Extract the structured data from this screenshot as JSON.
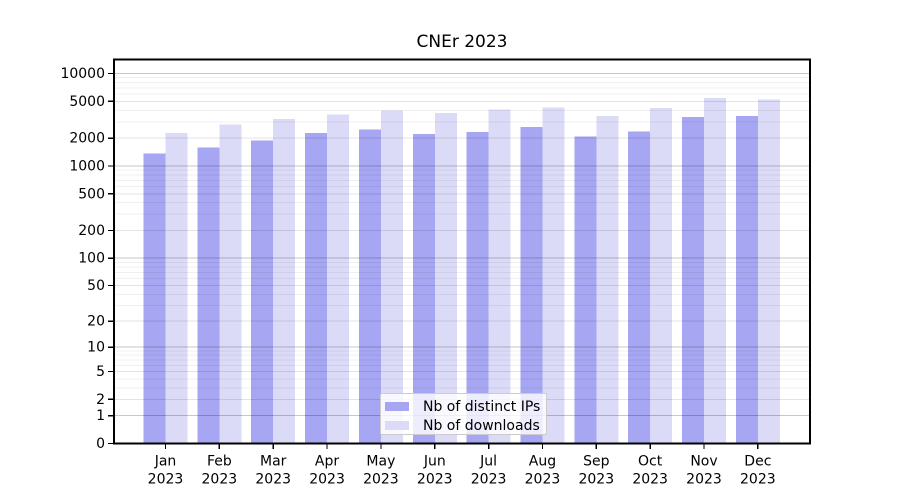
{
  "chart_data": {
    "type": "bar",
    "title": "CNEr 2023",
    "categories": [
      "Jan",
      "Feb",
      "Mar",
      "Apr",
      "May",
      "Jun",
      "Jul",
      "Aug",
      "Sep",
      "Oct",
      "Nov",
      "Dec"
    ],
    "category_year": "2023",
    "series": [
      {
        "name": "Nb of distinct IPs",
        "color": "#a6a6f2",
        "values": [
          1360,
          1580,
          1880,
          2270,
          2470,
          2230,
          2330,
          2640,
          2090,
          2370,
          3380,
          3460
        ]
      },
      {
        "name": "Nb of downloads",
        "color": "#dbdbf8",
        "values": [
          2260,
          2800,
          3210,
          3620,
          3990,
          3730,
          4060,
          4270,
          3460,
          4230,
          5420,
          5210
        ]
      }
    ],
    "xlabel": "",
    "ylabel": "",
    "yscale": "log1p",
    "yticks": [
      0,
      1,
      2,
      5,
      10,
      20,
      50,
      100,
      200,
      500,
      1000,
      2000,
      5000,
      10000
    ],
    "ylim": [
      0,
      14000
    ],
    "grid": true,
    "legend_position": "bottom-center"
  },
  "colors": {
    "axis": "#000000",
    "grid_major": "rgba(0,0,0,0.22)",
    "grid_mid": "rgba(0,0,0,0.11)",
    "grid_minor": "rgba(0,0,0,0.06)",
    "background": "#ffffff",
    "legend_border": "#cccccc"
  }
}
